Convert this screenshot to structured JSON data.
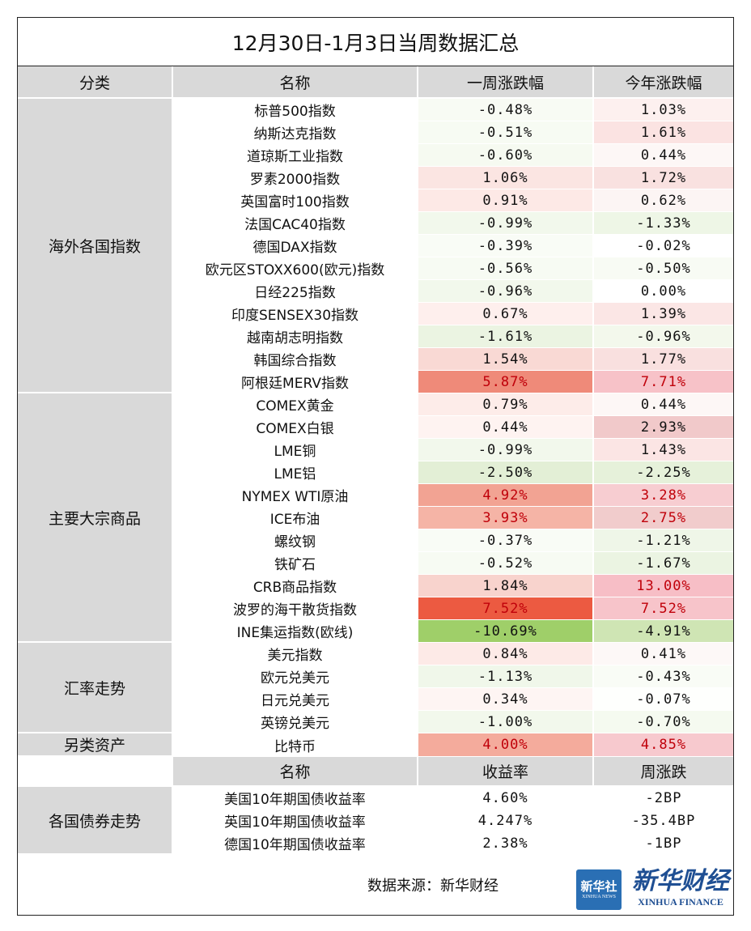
{
  "title": "12月30日-1月3日当周数据汇总",
  "headers": {
    "category": "分类",
    "name": "名称",
    "weekly": "一周涨跌幅",
    "ytd": "今年涨跌幅"
  },
  "groups": [
    {
      "category": "海外各国指数",
      "rows": [
        {
          "name": "标普500指数",
          "weekly": "-0.48%",
          "ytd": "1.03%",
          "weekly_bg": "#f8fbf4",
          "ytd_bg": "#fdf0ef"
        },
        {
          "name": "纳斯达克指数",
          "weekly": "-0.51%",
          "ytd": "1.61%",
          "weekly_bg": "#f7fbf3",
          "ytd_bg": "#fbe3e2"
        },
        {
          "name": "道琼斯工业指数",
          "weekly": "-0.60%",
          "ytd": "0.44%",
          "weekly_bg": "#f6faf1",
          "ytd_bg": "#fdf7f6"
        },
        {
          "name": "罗素2000指数",
          "weekly": "1.06%",
          "ytd": "1.72%",
          "weekly_bg": "#fbe5e2",
          "ytd_bg": "#f9e1e0"
        },
        {
          "name": "英国富时100指数",
          "weekly": "0.91%",
          "ytd": "0.62%",
          "weekly_bg": "#fde9e6",
          "ytd_bg": "#fcf5f4"
        },
        {
          "name": "法国CAC40指数",
          "weekly": "-0.99%",
          "ytd": "-1.33%",
          "weekly_bg": "#f2f8ec",
          "ytd_bg": "#eef6e6"
        },
        {
          "name": "德国DAX指数",
          "weekly": "-0.39%",
          "ytd": "-0.02%",
          "weekly_bg": "#f9fcf6",
          "ytd_bg": "#ffffff"
        },
        {
          "name": "欧元区STOXX600(欧元)指数",
          "weekly": "-0.56%",
          "ytd": "-0.50%",
          "weekly_bg": "#f7fbf3",
          "ytd_bg": "#f8fbf4"
        },
        {
          "name": "日经225指数",
          "weekly": "-0.96%",
          "ytd": "0.00%",
          "weekly_bg": "#f2f8ec",
          "ytd_bg": "#ffffff"
        },
        {
          "name": "印度SENSEX30指数",
          "weekly": "0.67%",
          "ytd": "1.39%",
          "weekly_bg": "#feefed",
          "ytd_bg": "#fbe6e5"
        },
        {
          "name": "越南胡志明指数",
          "weekly": "-1.61%",
          "ytd": "-0.96%",
          "weekly_bg": "#ebf4e2",
          "ytd_bg": "#f3f8ec"
        },
        {
          "name": "韩国综合指数",
          "weekly": "1.54%",
          "ytd": "1.77%",
          "weekly_bg": "#f9d9d4",
          "ytd_bg": "#f9e0df"
        },
        {
          "name": "阿根廷MERV指数",
          "weekly": "5.87%",
          "ytd": "7.71%",
          "weekly_bg": "#ef8a79",
          "ytd_bg": "#f7c2c8",
          "highlight": true
        }
      ]
    },
    {
      "category": "主要大宗商品",
      "rows": [
        {
          "name": "COMEX黄金",
          "weekly": "0.79%",
          "ytd": "0.44%",
          "weekly_bg": "#fdece9",
          "ytd_bg": "#fdf7f6"
        },
        {
          "name": "COMEX白银",
          "weekly": "0.44%",
          "ytd": "2.93%",
          "weekly_bg": "#fef3f1",
          "ytd_bg": "#f1c9ca"
        },
        {
          "name": "LME铜",
          "weekly": "-0.99%",
          "ytd": "1.43%",
          "weekly_bg": "#f2f8ec",
          "ytd_bg": "#fbe5e4"
        },
        {
          "name": "LME铝",
          "weekly": "-2.50%",
          "ytd": "-2.25%",
          "weekly_bg": "#e3efd6",
          "ytd_bg": "#e6f1da"
        },
        {
          "name": "NYMEX WTI原油",
          "weekly": "4.92%",
          "ytd": "3.28%",
          "weekly_bg": "#f2a393",
          "ytd_bg": "#f7cdd1",
          "highlight": true
        },
        {
          "name": "ICE布油",
          "weekly": "3.93%",
          "ytd": "2.75%",
          "weekly_bg": "#f5b4a6",
          "ytd_bg": "#f1cccc",
          "highlight": true
        },
        {
          "name": "螺纹钢",
          "weekly": "-0.37%",
          "ytd": "-1.21%",
          "weekly_bg": "#f9fcf6",
          "ytd_bg": "#eff6e8"
        },
        {
          "name": "铁矿石",
          "weekly": "-0.52%",
          "ytd": "-1.67%",
          "weekly_bg": "#f7fbf3",
          "ytd_bg": "#ebf4e2"
        },
        {
          "name": "CRB商品指数",
          "weekly": "1.84%",
          "ytd": "13.00%",
          "weekly_bg": "#f8d3cd",
          "ytd_bg": "#f7bec6",
          "ytd_highlight": true
        },
        {
          "name": "波罗的海干散货指数",
          "weekly": "7.52%",
          "ytd": "7.52%",
          "weekly_bg": "#ec5a41",
          "ytd_bg": "#f7c4ca",
          "highlight": true
        },
        {
          "name": "INE集运指数(欧线)",
          "weekly": "-10.69%",
          "ytd": "-4.91%",
          "weekly_bg": "#9fcf69",
          "ytd_bg": "#cfe5b4"
        }
      ]
    },
    {
      "category": "汇率走势",
      "rows": [
        {
          "name": "美元指数",
          "weekly": "0.84%",
          "ytd": "0.41%",
          "weekly_bg": "#fdeae7",
          "ytd_bg": "#fdf8f7"
        },
        {
          "name": "欧元兑美元",
          "weekly": "-1.13%",
          "ytd": "-0.43%",
          "weekly_bg": "#f0f7ea",
          "ytd_bg": "#f9fcf6"
        },
        {
          "name": "日元兑美元",
          "weekly": "0.34%",
          "ytd": "-0.07%",
          "weekly_bg": "#fef5f3",
          "ytd_bg": "#fefffd"
        },
        {
          "name": "英镑兑美元",
          "weekly": "-1.00%",
          "ytd": "-0.70%",
          "weekly_bg": "#f2f8ec",
          "ytd_bg": "#f5faf0"
        }
      ]
    },
    {
      "category": "另类资产",
      "rows": [
        {
          "name": "比特币",
          "weekly": "4.00%",
          "ytd": "4.85%",
          "weekly_bg": "#f4ab9c",
          "ytd_bg": "#f7c9ce",
          "highlight": true
        }
      ]
    }
  ],
  "bond_headers": {
    "name": "名称",
    "yield": "收益率",
    "change": "周涨跌"
  },
  "bond_section": {
    "category": "各国债券走势",
    "rows": [
      {
        "name": "美国10年期国债收益率",
        "yield": "4.60%",
        "change": "-2BP"
      },
      {
        "name": "英国10年期国债收益率",
        "yield": "4.247%",
        "change": "-35.4BP"
      },
      {
        "name": "德国10年期国债收益率",
        "yield": "2.38%",
        "change": "-1BP"
      }
    ]
  },
  "source": "数据来源：新华财经",
  "logo": {
    "badge_cn": "新华社",
    "badge_en": "XINHUA NEWS",
    "name_cn": "新华财经",
    "name_en": "XINHUA FINANCE"
  },
  "colors": {
    "header_gray": "#d9d9d9",
    "highlight_red": "#c0000a",
    "logo_blue": "#1f4f93"
  }
}
